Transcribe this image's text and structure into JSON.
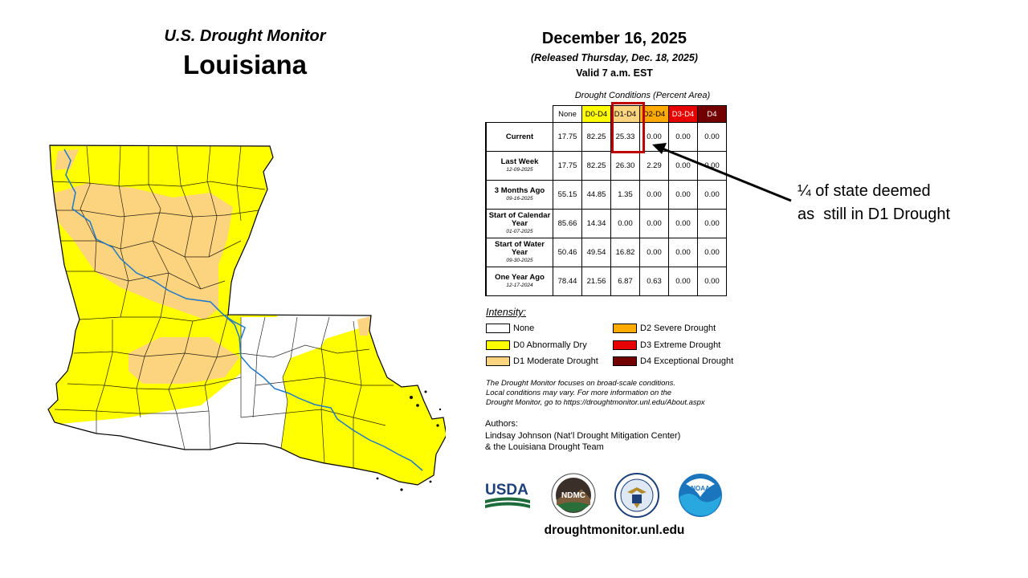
{
  "map": {
    "title": "U.S. Drought Monitor",
    "state": "Louisiana"
  },
  "header": {
    "date": "December 16, 2025",
    "released": "(Released Thursday, Dec. 18, 2025)",
    "valid": "Valid 7 a.m. EST"
  },
  "table": {
    "caption": "Drought Conditions (Percent Area)",
    "columns": [
      "None",
      "D0-D4",
      "D1-D4",
      "D2-D4",
      "D3-D4",
      "D4"
    ],
    "column_colors": [
      "#ffffff",
      "#ffff00",
      "#fcd37f",
      "#ffaa00",
      "#e60000",
      "#730000"
    ],
    "rows": [
      {
        "label": "Current",
        "date": "",
        "values": [
          "17.75",
          "82.25",
          "25.33",
          "0.00",
          "0.00",
          "0.00"
        ]
      },
      {
        "label": "Last Week",
        "date": "12-09-2025",
        "values": [
          "17.75",
          "82.25",
          "26.30",
          "2.29",
          "0.00",
          "0.00"
        ]
      },
      {
        "label": "3 Months Ago",
        "date": "09-16-2025",
        "values": [
          "55.15",
          "44.85",
          "1.35",
          "0.00",
          "0.00",
          "0.00"
        ]
      },
      {
        "label": "Start of Calendar Year",
        "date": "01-07-2025",
        "values": [
          "85.66",
          "14.34",
          "0.00",
          "0.00",
          "0.00",
          "0.00"
        ]
      },
      {
        "label": "Start of Water Year",
        "date": "09-30-2025",
        "values": [
          "50.46",
          "49.54",
          "16.82",
          "0.00",
          "0.00",
          "0.00"
        ]
      },
      {
        "label": "One Year Ago",
        "date": "12-17-2024",
        "values": [
          "78.44",
          "21.56",
          "6.87",
          "0.63",
          "0.00",
          "0.00"
        ]
      }
    ]
  },
  "intensity": {
    "title": "Intensity:",
    "items": [
      {
        "label": "None",
        "color": "#ffffff"
      },
      {
        "label": "D0 Abnormally Dry",
        "color": "#ffff00"
      },
      {
        "label": "D1 Moderate Drought",
        "color": "#fcd37f"
      },
      {
        "label": "D2 Severe Drought",
        "color": "#ffaa00"
      },
      {
        "label": "D3 Extreme Drought",
        "color": "#e60000"
      },
      {
        "label": "D4 Exceptional Drought",
        "color": "#730000"
      }
    ]
  },
  "note": [
    "The Drought Monitor focuses on broad-scale conditions.",
    "Local conditions may vary. For more information on the",
    "Drought Monitor, go to https://droughtmonitor.unl.edu/About.aspx"
  ],
  "authors": {
    "heading": "Authors:",
    "line1": "Lindsay Johnson (Nat’l Drought Mitigation Center)",
    "line2": "& the Louisiana Drought Team"
  },
  "logos": [
    "USDA",
    "NDMC",
    "NOAA"
  ],
  "website": "droughtmonitor.unl.edu",
  "annotation": {
    "line1": "¼ of state deemed",
    "line2": "as  still in D1 Drought"
  },
  "colors": {
    "river": "#1f78c8",
    "highlight": "#c00000",
    "arrow": "#000000"
  }
}
